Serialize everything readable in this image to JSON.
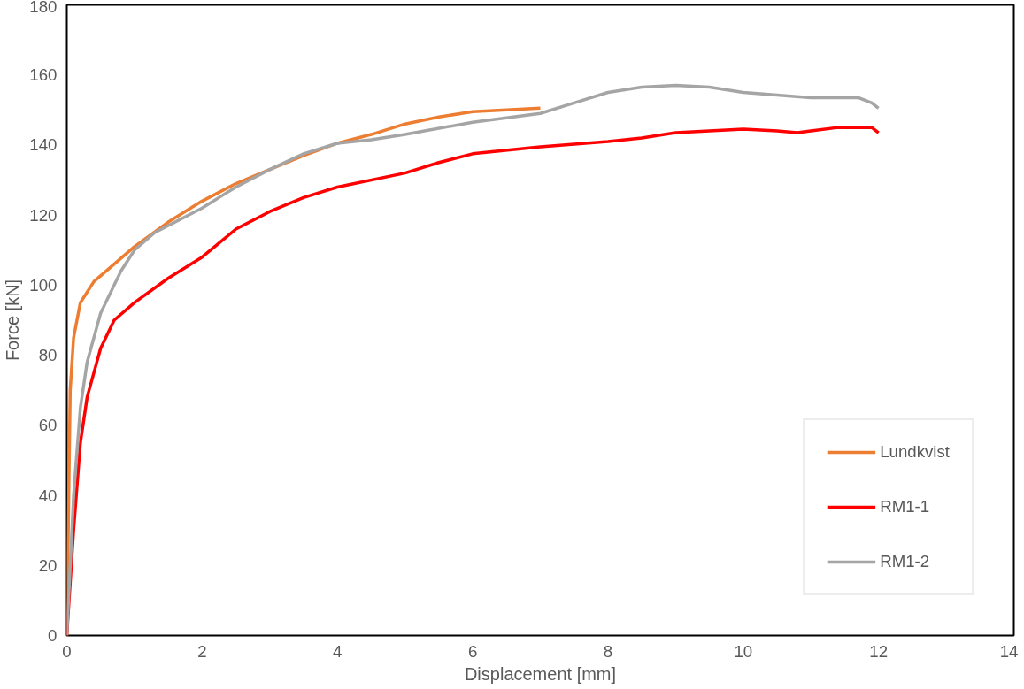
{
  "chart_data": {
    "type": "line",
    "xlabel": "Displacement [mm]",
    "ylabel": "Force [kN]",
    "xlim": [
      0,
      14
    ],
    "ylim": [
      0,
      180
    ],
    "xticks": [
      0,
      2,
      4,
      6,
      8,
      10,
      12,
      14
    ],
    "yticks": [
      0,
      20,
      40,
      60,
      80,
      100,
      120,
      140,
      160,
      180
    ],
    "grid": false,
    "legend": "bottom right",
    "marker": "none",
    "line_style": "solid",
    "series": [
      {
        "name": "Lundkvist",
        "color": "#ed7d31",
        "x": [
          0,
          0.05,
          0.1,
          0.2,
          0.4,
          0.7,
          1,
          1.5,
          2,
          2.5,
          3,
          3.5,
          4,
          4.5,
          5,
          5.5,
          6,
          6.5,
          7
        ],
        "values": [
          0,
          70,
          85,
          95,
          101,
          106,
          111,
          118,
          124,
          129,
          133,
          137,
          140.5,
          143,
          146,
          148,
          149.5,
          150,
          150.5
        ]
      },
      {
        "name": "RM1-1",
        "color": "#ff0000",
        "x": [
          0,
          0.1,
          0.2,
          0.3,
          0.5,
          0.7,
          1,
          1.5,
          2,
          2.5,
          3,
          3.5,
          4,
          5,
          5.5,
          6,
          7,
          8,
          8.5,
          9,
          10,
          10.5,
          10.8,
          11,
          11.4,
          11.9,
          12
        ],
        "values": [
          0,
          30,
          55,
          68,
          82,
          90,
          95,
          102,
          108,
          116,
          121,
          125,
          128,
          132,
          135,
          137.5,
          139.5,
          141,
          142,
          143.5,
          144.5,
          144,
          143.5,
          144,
          145,
          145,
          143.5
        ]
      },
      {
        "name": "RM1-2",
        "color": "#a5a5a5",
        "x": [
          0,
          0.1,
          0.2,
          0.3,
          0.5,
          0.8,
          1,
          1.3,
          1.5,
          2,
          2.5,
          3,
          3.5,
          4,
          4.5,
          5,
          6,
          7,
          7.5,
          8,
          8.5,
          9,
          9.5,
          10,
          11,
          11.7,
          11.9,
          12
        ],
        "values": [
          0,
          40,
          65,
          78,
          92,
          104,
          110,
          115,
          117,
          122,
          128,
          133,
          137.5,
          140.5,
          141.5,
          143,
          146.5,
          149,
          152,
          155,
          156.5,
          157,
          156.5,
          155,
          153.5,
          153.5,
          152,
          150.5
        ]
      }
    ]
  }
}
